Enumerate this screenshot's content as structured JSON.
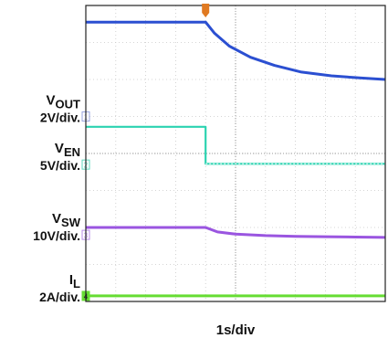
{
  "chart_data": {
    "type": "line",
    "title": "",
    "xlabel": "1s/div",
    "ylabel": "",
    "x_divisions": 10,
    "x_range_s": [
      0,
      10
    ],
    "grid": true,
    "background": "#ffffff",
    "grid_color": "#c8c8c8",
    "trigger_time_s": 4.0,
    "channels": [
      {
        "id": "1",
        "name_main": "V",
        "name_sub": "OUT",
        "scale": "2V/div.",
        "color": "#2b4fd1",
        "marker_color": "#9aa6e0",
        "level_div": 5.0,
        "x": [
          0,
          4.0,
          4.3,
          4.8,
          5.5,
          6.3,
          7.2,
          8.2,
          9.2,
          10
        ],
        "y": [
          7.55,
          7.55,
          7.25,
          6.9,
          6.6,
          6.38,
          6.2,
          6.1,
          6.04,
          6.0
        ]
      },
      {
        "id": "2",
        "name_main": "V",
        "name_sub": "EN",
        "scale": "5V/div.",
        "color": "#2bd3b0",
        "marker_color": "#5ed9bd",
        "level_div": 3.7,
        "x": [
          0,
          4.0,
          4.0,
          10
        ],
        "y": [
          4.72,
          4.72,
          3.72,
          3.72
        ]
      },
      {
        "id": "3",
        "name_main": "V",
        "name_sub": "SW",
        "scale": "10V/div.",
        "color": "#9a55e0",
        "marker_color": "#b88ee8",
        "level_div": 1.8,
        "x": [
          0,
          4.0,
          4.4,
          5.0,
          6.0,
          7.0,
          8.0,
          9.0,
          10
        ],
        "y": [
          2.0,
          2.0,
          1.88,
          1.82,
          1.78,
          1.76,
          1.75,
          1.74,
          1.73
        ]
      },
      {
        "id": "4",
        "name_main": "I",
        "name_sub": "L",
        "scale": "2A/div.",
        "color": "#66dd33",
        "marker_color": "#66dd33",
        "level_div": 0.15,
        "x": [
          0,
          10
        ],
        "y": [
          0.15,
          0.15
        ]
      }
    ]
  }
}
